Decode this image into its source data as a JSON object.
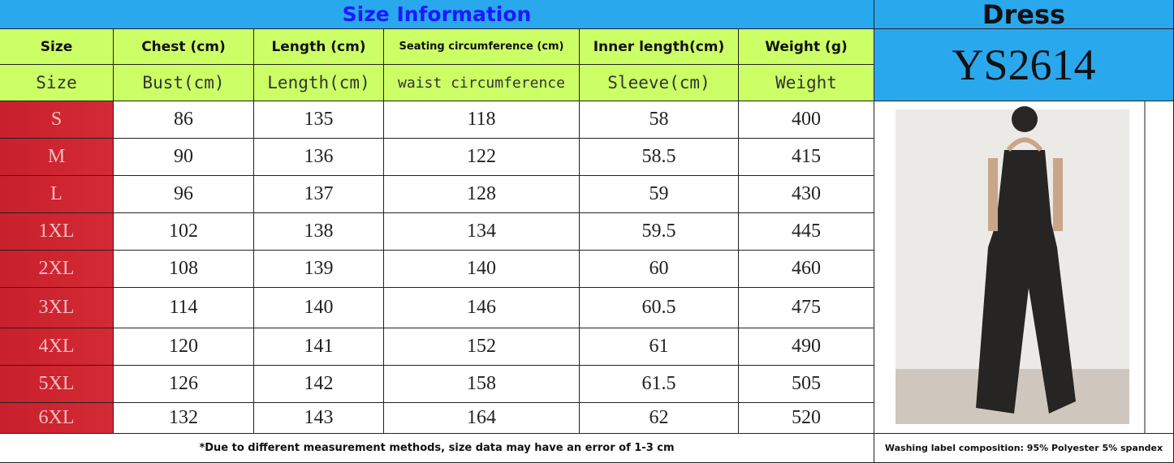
{
  "title": "Size Information",
  "side": {
    "title": "Dress",
    "code": "YS2614",
    "washing_label": "Washing label composition: 95% Polyester 5% spandex"
  },
  "table": {
    "header": [
      "Size",
      "Chest (cm)",
      "Length (cm)",
      "Seating circumference (cm)",
      "Inner length(cm)",
      "Weight (g)"
    ],
    "subheader": [
      "Size",
      "Bust(cm)",
      "Length(cm)",
      "waist circumference",
      "Sleeve(cm)",
      "Weight"
    ],
    "rows": [
      [
        "S",
        86,
        135,
        118,
        58,
        400
      ],
      [
        "M",
        90,
        136,
        122,
        58.5,
        415
      ],
      [
        "L",
        96,
        137,
        128,
        59,
        430
      ],
      [
        "1XL",
        102,
        138,
        134,
        59.5,
        445
      ],
      [
        "2XL",
        108,
        139,
        140,
        60,
        460
      ],
      [
        "3XL",
        114,
        140,
        146,
        60.5,
        475
      ],
      [
        "4XL",
        120,
        141,
        152,
        61,
        490
      ],
      [
        "5XL",
        126,
        142,
        158,
        61.5,
        505
      ],
      [
        "6XL",
        132,
        143,
        164,
        62,
        520
      ]
    ],
    "footnote": "*Due to different measurement methods, size data may have an error of 1-3 cm"
  }
}
